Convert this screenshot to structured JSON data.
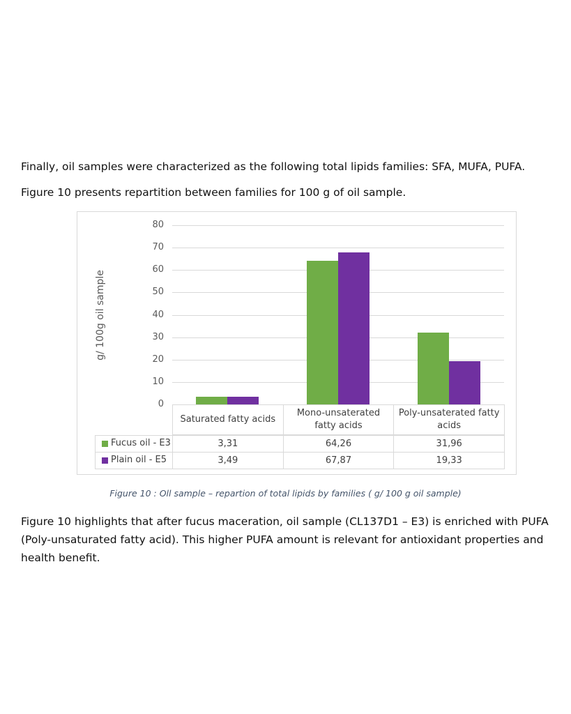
{
  "paragraphs": [
    "Finally, oil samples were characterized as the following total lipids families: SFA, MUFA, PUFA.",
    "Figure 10 presents repartition between families for 100 g of oil sample."
  ],
  "chart_data": {
    "type": "bar",
    "y_axis_label": "g/ 100g oil sample",
    "categories": [
      "Saturated fatty acids",
      "Mono-unsaterated fatty acids",
      "Poly-unsaterated fatty acids"
    ],
    "series": [
      {
        "name": "Fucus oil - E3",
        "color": "#70ad47",
        "values": [
          3.31,
          64.26,
          31.96
        ],
        "value_labels": [
          "3,31",
          "64,26",
          "31,96"
        ]
      },
      {
        "name": "Plain oil - E5",
        "color": "#7030a0",
        "values": [
          3.49,
          67.87,
          19.33
        ],
        "value_labels": [
          "3,49",
          "67,87",
          "19,33"
        ]
      }
    ],
    "ylim": [
      0,
      80
    ],
    "yticks": [
      0,
      10,
      20,
      30,
      40,
      50,
      60,
      70,
      80
    ],
    "grid": true
  },
  "caption": "Figure 10 : Oll sample – repartion of total lipids by families ( g/ 100 g oil sample)",
  "closing_paragraph": "Figure 10 highlights that after fucus maceration, oil sample (CL137D1 – E3) is enriched with PUFA (Poly-unsaturated fatty acid). This higher PUFA amount is relevant for antioxidant properties and health benefit."
}
